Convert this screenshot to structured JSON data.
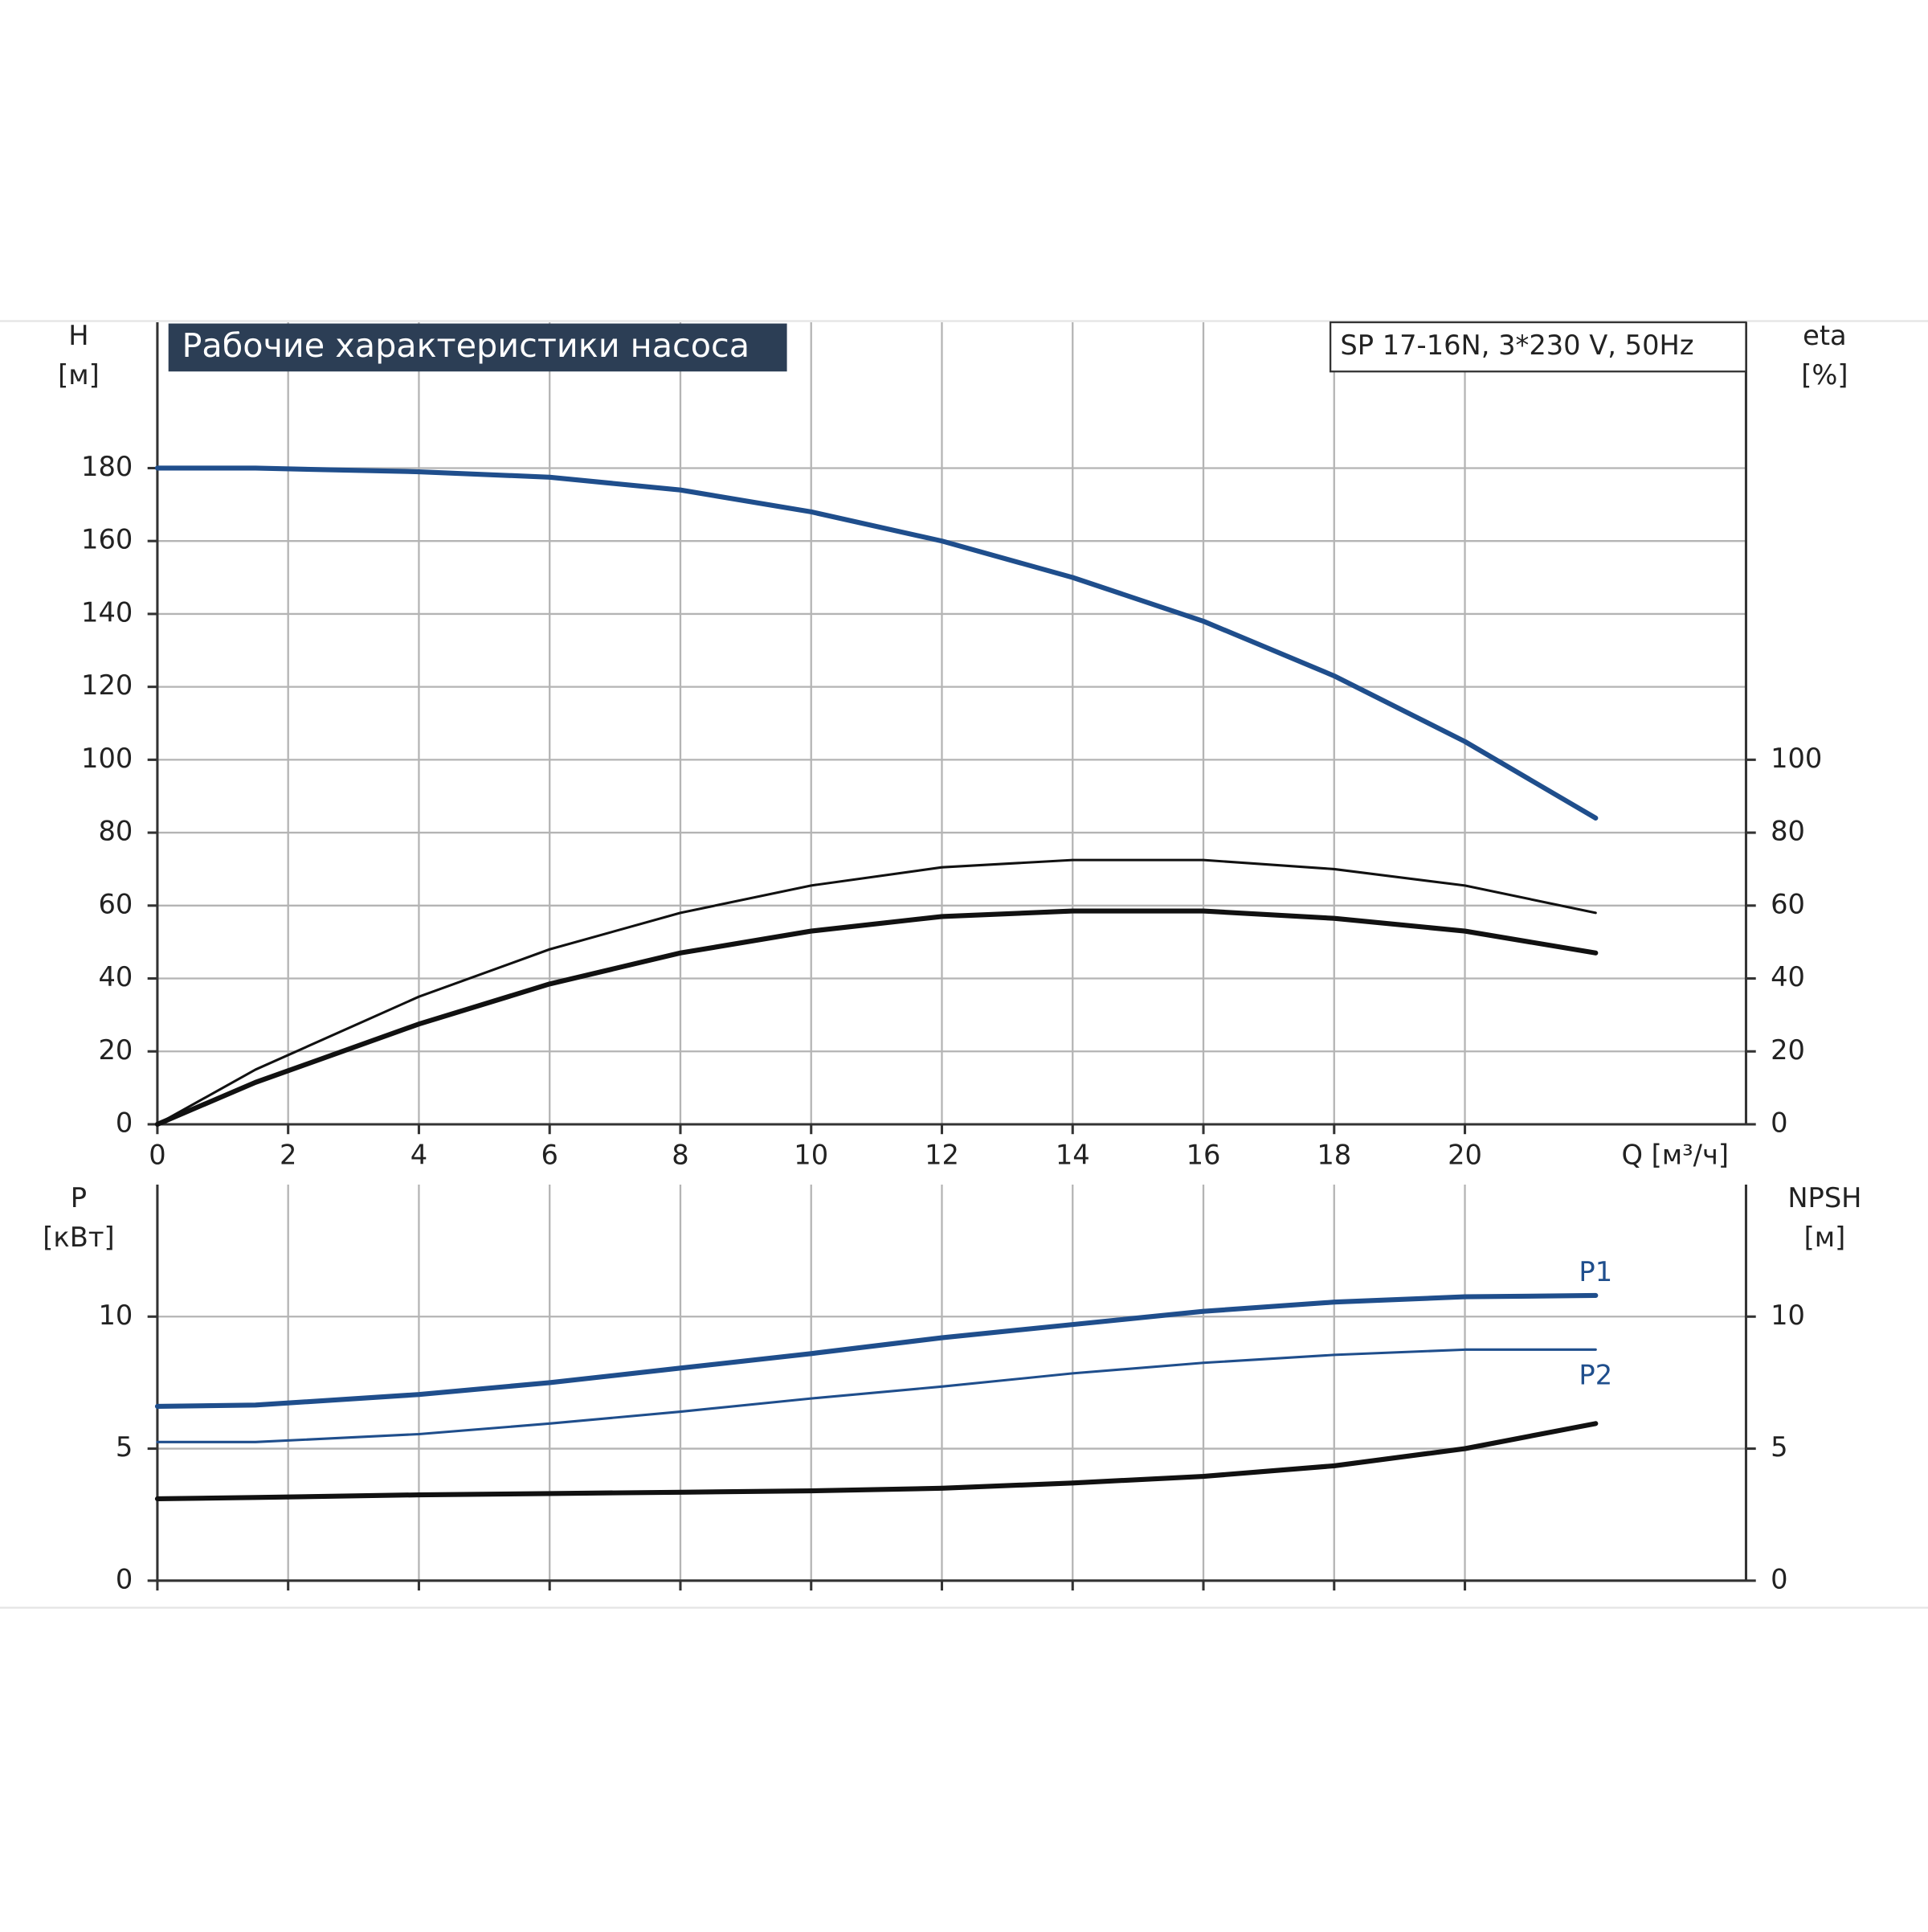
{
  "chart_data": [
    {
      "type": "line",
      "title": "Рабочие характеристики насоса",
      "subtitle": "SP 17-16N, 3*230 V, 50Hz",
      "ylabel": "H",
      "yunit": "[м]",
      "y2label": "eta",
      "y2unit": "[%]",
      "xlabel": "Q [м³/ч]",
      "xlim": [
        0,
        24.3
      ],
      "xticks": [
        0,
        2,
        4,
        6,
        8,
        10,
        12,
        14,
        16,
        18,
        20
      ],
      "ylim": [
        0,
        220
      ],
      "yticks": [
        0,
        20,
        40,
        60,
        80,
        100,
        120,
        140,
        160,
        180
      ],
      "y2lim": [
        0,
        220
      ],
      "y2ticks": [
        0,
        20,
        40,
        60,
        80,
        100
      ],
      "grid": true,
      "show_xtick_labels": true,
      "x": [
        0,
        1.5,
        4,
        6,
        8,
        10,
        12,
        14,
        16,
        18,
        20,
        22
      ],
      "series": [
        {
          "color": "#1f4e8c",
          "values": [
            180,
            180,
            179,
            177.5,
            174,
            168,
            160,
            150,
            138,
            123,
            105,
            84
          ]
        },
        {
          "color": "#111111",
          "axis": "y2",
          "values": [
            0,
            15,
            35,
            48,
            58,
            65.5,
            70.5,
            72.5,
            72.5,
            70,
            65.5,
            58
          ]
        },
        {
          "color": "#111111",
          "axis": "y2",
          "values": [
            0,
            11.5,
            27.5,
            38.5,
            47,
            53,
            57,
            58.5,
            58.5,
            56.5,
            53,
            47
          ]
        }
      ]
    },
    {
      "type": "line",
      "ylabel": "P",
      "yunit": "[кВт]",
      "y2label": "NPSH",
      "y2unit": "[м]",
      "xlim": [
        0,
        24.3
      ],
      "xticks": [
        0,
        2,
        4,
        6,
        8,
        10,
        12,
        14,
        16,
        18,
        20
      ],
      "ylim": [
        0,
        15
      ],
      "yticks": [
        0,
        5,
        10
      ],
      "y2lim": [
        0,
        15
      ],
      "y2ticks": [
        0,
        5,
        10
      ],
      "grid": true,
      "show_xtick_labels": false,
      "x": [
        0,
        1.5,
        4,
        6,
        8,
        10,
        12,
        14,
        16,
        18,
        20,
        22
      ],
      "series": [
        {
          "name": "P1",
          "color": "#1f4e8c",
          "values": [
            6.6,
            6.65,
            7.05,
            7.5,
            8.05,
            8.6,
            9.2,
            9.7,
            10.2,
            10.55,
            10.75,
            10.8
          ]
        },
        {
          "name": "P2",
          "color": "#1f4e8c",
          "values": [
            5.25,
            5.25,
            5.55,
            5.95,
            6.4,
            6.9,
            7.35,
            7.85,
            8.25,
            8.55,
            8.75,
            8.75
          ]
        },
        {
          "color": "#111111",
          "axis": "y2",
          "values": [
            3.1,
            3.15,
            3.25,
            3.3,
            3.35,
            3.4,
            3.5,
            3.7,
            3.95,
            4.35,
            5.0,
            5.95
          ]
        }
      ]
    }
  ]
}
